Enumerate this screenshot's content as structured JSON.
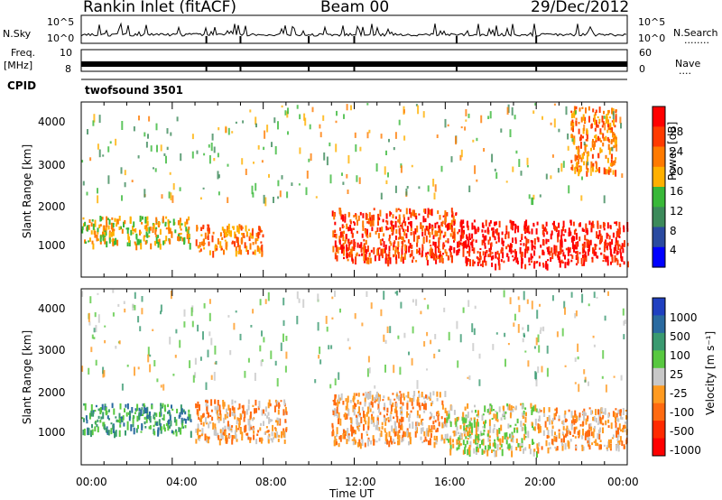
{
  "header": {
    "station": "Rankin Inlet (fitACF)",
    "beam": "Beam 00",
    "date": "29/Dec/2012"
  },
  "noise_panel": {
    "left_label": "N.Sky",
    "right_label": "N.Search",
    "right_dots": "........",
    "ticks_left": [
      "10^5",
      "10^0"
    ],
    "ticks_right": [
      "10^5",
      "10^0"
    ]
  },
  "freq_panel": {
    "left_label_1": "Freq.",
    "left_label_2": "[MHz]",
    "right_label": "Nave",
    "right_dots": "....",
    "ticks_left": [
      "10",
      "8"
    ],
    "ticks_right": [
      "60",
      "0"
    ]
  },
  "cpid": {
    "label": "CPID",
    "program": "twofsound 3501"
  },
  "x_axis": {
    "label": "Time UT",
    "ticks": [
      "00:00",
      "04:00",
      "08:00",
      "12:00",
      "16:00",
      "20:00",
      "00:00"
    ]
  },
  "power_panel": {
    "ylabel": "Slant Range [km]",
    "y_ticks": [
      "4000",
      "3000",
      "2000",
      "1000"
    ],
    "colorbar_label": "Power [dB]",
    "colorbar_ticks": [
      "28",
      "24",
      "20",
      "16",
      "12",
      "8",
      "4"
    ],
    "colors": [
      "#0000ff",
      "#2a4aa0",
      "#3c8a5a",
      "#38b838",
      "#ffb000",
      "#ff7a00",
      "#ff3a00",
      "#ff0000"
    ]
  },
  "velocity_panel": {
    "ylabel": "Slant Range [km]",
    "y_ticks": [
      "4000",
      "3000",
      "2000",
      "1000"
    ],
    "colorbar_label": "Velocity [m s⁻¹]",
    "colorbar_ticks": [
      "1000",
      "500",
      "100",
      "25",
      "-25",
      "-100",
      "-500",
      "-1000"
    ],
    "colors": [
      "#2040c0",
      "#2a6aa0",
      "#3a9a70",
      "#58c840",
      "#c8c8c8",
      "#ff9a20",
      "#ff6a10",
      "#ff2a00",
      "#ff0000"
    ]
  },
  "chart_data": [
    {
      "type": "heatmap",
      "title": "Power",
      "xlabel": "Time UT",
      "ylabel": "Slant Range [km]",
      "x_range_hours": [
        0,
        24
      ],
      "ylim_km": [
        180,
        4500
      ],
      "colorbar": {
        "label": "Power [dB]",
        "ticks": [
          4,
          8,
          12,
          16,
          20,
          24,
          28
        ]
      },
      "features": [
        {
          "time_h": [
            0,
            4.8
          ],
          "range_km": [
            1000,
            1700
          ],
          "power_db": 18
        },
        {
          "time_h": [
            5,
            8
          ],
          "range_km": [
            800,
            1500
          ],
          "power_db": 22
        },
        {
          "time_h": [
            11,
            16.5
          ],
          "range_km": [
            600,
            1900
          ],
          "power_db": 26
        },
        {
          "time_h": [
            16.5,
            24
          ],
          "range_km": [
            500,
            1600
          ],
          "power_db": 27
        },
        {
          "time_h": [
            21.5,
            23.5
          ],
          "range_km": [
            2800,
            4400
          ],
          "power_db": 20
        }
      ]
    },
    {
      "type": "heatmap",
      "title": "Velocity",
      "xlabel": "Time UT",
      "ylabel": "Slant Range [km]",
      "x_range_hours": [
        0,
        24
      ],
      "ylim_km": [
        180,
        4500
      ],
      "colorbar": {
        "label": "Velocity [m s-1]",
        "ticks": [
          1000,
          500,
          100,
          25,
          -25,
          -100,
          -500,
          -1000
        ]
      },
      "features": [
        {
          "time_h": [
            0,
            4.8
          ],
          "range_km": [
            1000,
            1700
          ],
          "velocity_ms": 150
        },
        {
          "time_h": [
            5,
            9
          ],
          "range_km": [
            800,
            1800
          ],
          "velocity_ms": -300
        },
        {
          "time_h": [
            11,
            16
          ],
          "range_km": [
            700,
            2000
          ],
          "velocity_ms": -300
        },
        {
          "time_h": [
            16,
            20
          ],
          "range_km": [
            500,
            1700
          ],
          "velocity_ms": 0
        },
        {
          "time_h": [
            20,
            24
          ],
          "range_km": [
            600,
            1600
          ],
          "velocity_ms": -200
        }
      ]
    }
  ],
  "noise_series": {
    "note_hours": [
      0,
      24
    ]
  }
}
